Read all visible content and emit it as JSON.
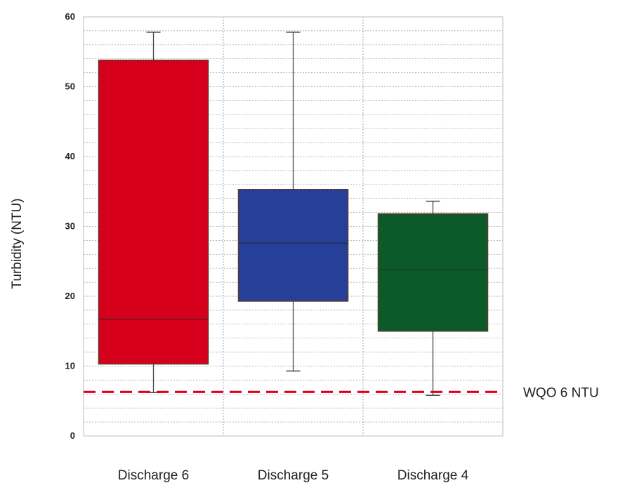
{
  "chart_data": {
    "type": "boxplot",
    "ylabel": "Turbidity (NTU)",
    "ylim": [
      0,
      60
    ],
    "yticks": [
      "0",
      "10",
      "20",
      "30",
      "40",
      "50",
      "60"
    ],
    "grid": true,
    "categories": [
      "Discharge 6",
      "Discharge 5",
      "Discharge 4"
    ],
    "boxes": [
      {
        "category": "Discharge 6",
        "min": 6.2,
        "q1": 10.3,
        "median": 16.7,
        "q3": 53.8,
        "max": 57.8,
        "color": "#d6001c"
      },
      {
        "category": "Discharge 5",
        "min": 9.3,
        "q1": 19.3,
        "median": 27.6,
        "q3": 35.3,
        "max": 57.8,
        "color": "#263f99"
      },
      {
        "category": "Discharge 4",
        "min": 5.8,
        "q1": 15.0,
        "median": 23.8,
        "q3": 31.8,
        "max": 33.6,
        "color": "#0c5a2a"
      }
    ],
    "reference_line": {
      "label": "WQO 6 NTU",
      "value": 6.3,
      "color": "#e0001b"
    }
  }
}
